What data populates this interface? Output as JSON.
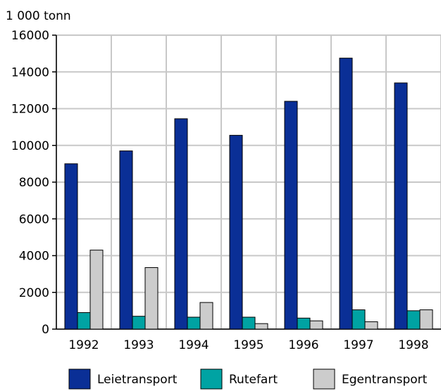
{
  "chart_data": {
    "type": "bar",
    "unit_label": "1 000 tonn",
    "categories": [
      "1992",
      "1993",
      "1994",
      "1995",
      "1996",
      "1997",
      "1998"
    ],
    "series": [
      {
        "name": "Leietransport",
        "color": "#0a2f96",
        "values": [
          9000,
          9700,
          11450,
          10550,
          12400,
          14750,
          13400
        ]
      },
      {
        "name": "Rutefart",
        "color": "#00a3a3",
        "values": [
          900,
          700,
          650,
          650,
          600,
          1050,
          1000
        ]
      },
      {
        "name": "Egentransport",
        "color": "#cccccc",
        "values": [
          4300,
          3350,
          1450,
          300,
          450,
          400,
          1050
        ]
      }
    ],
    "ylim": [
      0,
      16000
    ],
    "yticks": [
      "0",
      "2000",
      "4000",
      "6000",
      "8000",
      "10000",
      "12000",
      "14000",
      "16000"
    ],
    "grid": true,
    "legend_position": "bottom"
  }
}
